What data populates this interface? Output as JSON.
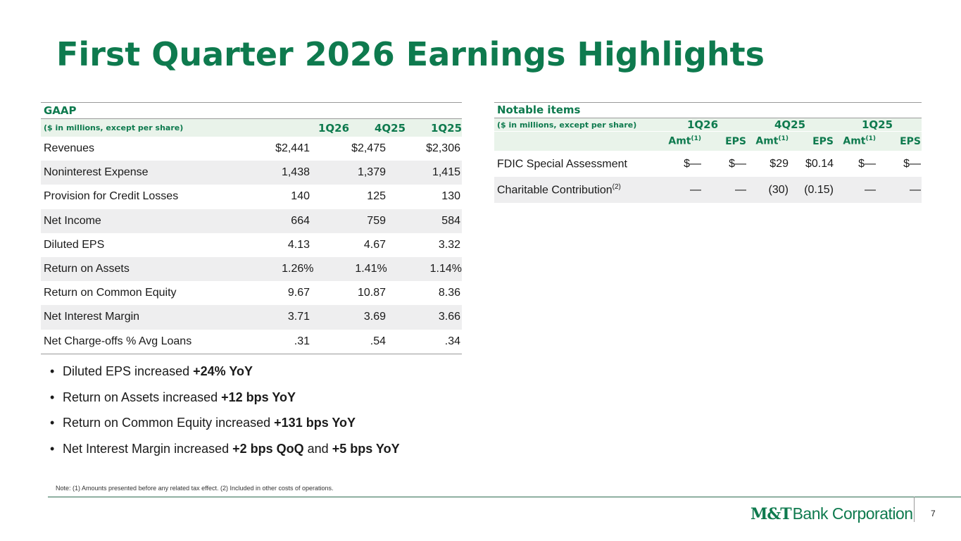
{
  "title": "First Quarter 2026 Earnings Highlights",
  "gaap": {
    "section_title": "GAAP",
    "caption": "($ in millions, except per share)",
    "columns": [
      "1Q26",
      "4Q25",
      "1Q25"
    ],
    "rows": [
      {
        "label": "Revenues",
        "values": [
          "$2,441",
          "$2,475",
          "$2,306"
        ]
      },
      {
        "label": "Noninterest Expense",
        "values": [
          "1,438",
          "1,379",
          "1,415"
        ]
      },
      {
        "label": "Provision for Credit Losses",
        "values": [
          "140",
          "125",
          "130"
        ]
      },
      {
        "label": "Net Income",
        "values": [
          "664",
          "759",
          "584"
        ]
      },
      {
        "label": "Diluted EPS",
        "values": [
          "4.13",
          "4.67",
          "3.32"
        ]
      },
      {
        "label": "Return on Assets",
        "values": [
          "1.26%",
          "1.41%",
          "1.14%"
        ]
      },
      {
        "label": "Return on Common Equity",
        "values": [
          "9.67",
          "10.87",
          "8.36"
        ]
      },
      {
        "label": "Net Interest Margin",
        "values": [
          "3.71",
          "3.69",
          "3.66"
        ]
      },
      {
        "label": "Net Charge-offs % Avg Loans",
        "values": [
          ".31",
          ".54",
          ".34"
        ]
      }
    ]
  },
  "notable": {
    "section_title": "Notable items",
    "caption": "($ in millions, except per share)",
    "groups": [
      "1Q26",
      "4Q25",
      "1Q25"
    ],
    "sub_amt": "Amt",
    "sub_amt_note": "(1)",
    "sub_eps": "EPS",
    "rows": [
      {
        "label": "FDIC Special Assessment",
        "note": "",
        "values": [
          "$—",
          "$—",
          "$29",
          "$0.14",
          "$—",
          "$—"
        ]
      },
      {
        "label": "Charitable Contribution",
        "note": "(2)",
        "values": [
          "—",
          "—",
          "(30)",
          "(0.15)",
          "—",
          "—"
        ]
      }
    ]
  },
  "bullets": [
    {
      "text": "Diluted EPS increased ",
      "bold": "+24% YoY",
      "text2": "",
      "bold2": ""
    },
    {
      "text": "Return on Assets increased ",
      "bold": "+12 bps YoY",
      "text2": "",
      "bold2": ""
    },
    {
      "text": "Return on Common Equity increased ",
      "bold": "+131 bps YoY",
      "text2": "",
      "bold2": ""
    },
    {
      "text": "Net Interest Margin increased ",
      "bold": "+2 bps QoQ",
      "text2": " and ",
      "bold2": "+5 bps YoY"
    }
  ],
  "bullet_symbol": "•",
  "note": "Note: (1) Amounts presented before any related tax effect. (2) Included in other costs of operations.",
  "logo": {
    "mark": "M&T",
    "name": "Bank Corporation"
  },
  "page_number": "7",
  "colors": {
    "brand_green": "#0e7a4e",
    "header_fill": "#e9f3ea",
    "row_shade": "#eeeeef"
  }
}
